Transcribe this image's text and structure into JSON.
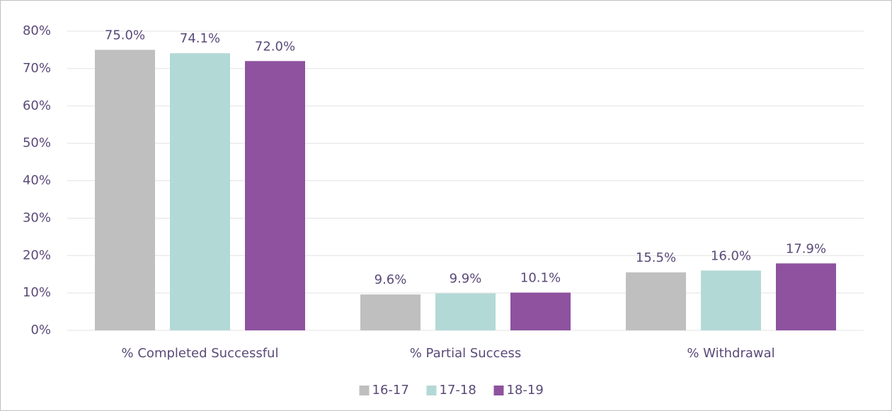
{
  "chart_data": {
    "type": "bar",
    "categories": [
      "% Completed Successful",
      "% Partial Success",
      "% Withdrawal"
    ],
    "series": [
      {
        "name": "16-17",
        "color": "#bfbfbf",
        "values": [
          75.0,
          9.6,
          15.5
        ],
        "value_labels": [
          "75.0%",
          "9.6%",
          "15.5%"
        ]
      },
      {
        "name": "17-18",
        "color": "#b3d9d6",
        "values": [
          74.1,
          9.9,
          16.0
        ],
        "value_labels": [
          "74.1%",
          "9.9%",
          "16.0%"
        ]
      },
      {
        "name": "18-19",
        "color": "#8e529f",
        "values": [
          72.0,
          10.1,
          17.9
        ],
        "value_labels": [
          "72.0%",
          "10.1%",
          "17.9%"
        ]
      }
    ],
    "ylim": [
      0,
      80
    ],
    "yticks": [
      {
        "value": 0,
        "label": "0%"
      },
      {
        "value": 10,
        "label": "10%"
      },
      {
        "value": 20,
        "label": "20%"
      },
      {
        "value": 30,
        "label": "30%"
      },
      {
        "value": 40,
        "label": "40%"
      },
      {
        "value": 50,
        "label": "50%"
      },
      {
        "value": 60,
        "label": "60%"
      },
      {
        "value": 70,
        "label": "70%"
      },
      {
        "value": 80,
        "label": "80%"
      }
    ],
    "grid": true,
    "legend": "bottom"
  }
}
